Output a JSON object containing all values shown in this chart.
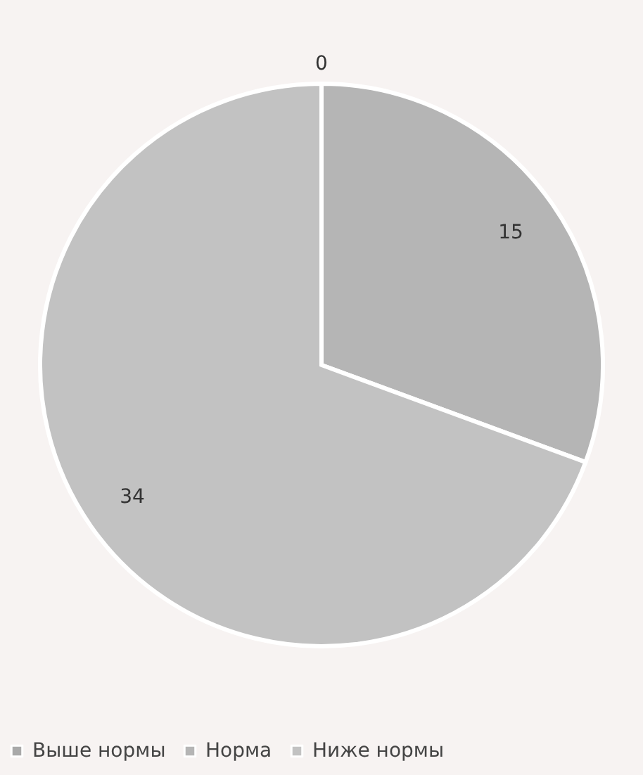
{
  "chart_data": {
    "type": "pie",
    "categories": [
      "Выше нормы",
      "Норма",
      "Ниже нормы"
    ],
    "values": [
      0,
      15,
      34
    ],
    "colors": [
      "#a9a9a9",
      "#b5b5b5",
      "#c2c2c2"
    ],
    "value_labels": [
      "0",
      "15",
      "34"
    ],
    "legend": "bottom"
  }
}
